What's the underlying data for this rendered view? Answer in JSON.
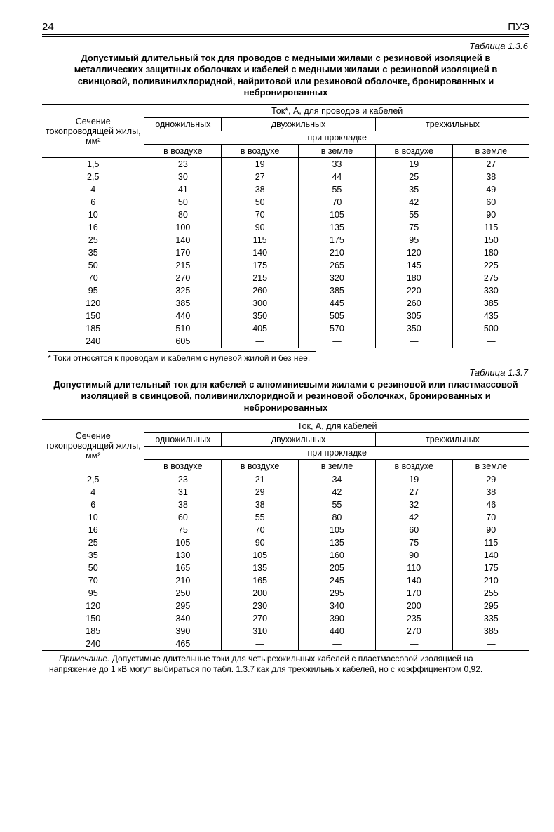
{
  "header": {
    "page_num": "24",
    "book": "ПУЭ"
  },
  "table1": {
    "label": "Таблица 1.3.6",
    "title": "Допустимый длительный ток для проводов с медными жилами с резиновой изоляцией в металлических защитных оболочках и кабелей с медными жилами с резиновой изоляцией в свинцовой, поливинилхлоридной, найритовой или резиновой оболочке, бронированных и небронированных",
    "row_header": "Сечение токопроводящей жилы, мм²",
    "super_header": "Ток*, А, для проводов и кабелей",
    "group1": "одножильных",
    "group2": "двухжильных",
    "group3": "трехжильных",
    "sub_header": "при прокладке",
    "col_air": "в воздухе",
    "col_ground": "в земле",
    "rows": [
      [
        "1,5",
        "23",
        "19",
        "33",
        "19",
        "27"
      ],
      [
        "2,5",
        "30",
        "27",
        "44",
        "25",
        "38"
      ],
      [
        "4",
        "41",
        "38",
        "55",
        "35",
        "49"
      ],
      [
        "6",
        "50",
        "50",
        "70",
        "42",
        "60"
      ],
      [
        "10",
        "80",
        "70",
        "105",
        "55",
        "90"
      ],
      [
        "16",
        "100",
        "90",
        "135",
        "75",
        "115"
      ],
      [
        "25",
        "140",
        "115",
        "175",
        "95",
        "150"
      ],
      [
        "35",
        "170",
        "140",
        "210",
        "120",
        "180"
      ],
      [
        "50",
        "215",
        "175",
        "265",
        "145",
        "225"
      ],
      [
        "70",
        "270",
        "215",
        "320",
        "180",
        "275"
      ],
      [
        "95",
        "325",
        "260",
        "385",
        "220",
        "330"
      ],
      [
        "120",
        "385",
        "300",
        "445",
        "260",
        "385"
      ],
      [
        "150",
        "440",
        "350",
        "505",
        "305",
        "435"
      ],
      [
        "185",
        "510",
        "405",
        "570",
        "350",
        "500"
      ],
      [
        "240",
        "605",
        "—",
        "—",
        "—",
        "—"
      ]
    ],
    "footnote": "* Токи относятся к проводам и кабелям с нулевой жилой и без нее."
  },
  "table2": {
    "label": "Таблица 1.3.7",
    "title": "Допустимый длительный ток для кабелей с алюминиевыми жилами с резиновой или пластмассовой изоляцией в свинцовой, поливинилхлоридной и резиновой оболочках, бронированных и небронированных",
    "row_header": "Сечение токопроводящей жилы, мм²",
    "super_header": "Ток, А, для кабелей",
    "group1": "одножильных",
    "group2": "двухжильных",
    "group3": "трехжильных",
    "sub_header": "при прокладке",
    "col_air": "в воздухе",
    "col_ground": "в земле",
    "rows": [
      [
        "2,5",
        "23",
        "21",
        "34",
        "19",
        "29"
      ],
      [
        "4",
        "31",
        "29",
        "42",
        "27",
        "38"
      ],
      [
        "6",
        "38",
        "38",
        "55",
        "32",
        "46"
      ],
      [
        "10",
        "60",
        "55",
        "80",
        "42",
        "70"
      ],
      [
        "16",
        "75",
        "70",
        "105",
        "60",
        "90"
      ],
      [
        "25",
        "105",
        "90",
        "135",
        "75",
        "115"
      ],
      [
        "35",
        "130",
        "105",
        "160",
        "90",
        "140"
      ],
      [
        "50",
        "165",
        "135",
        "205",
        "110",
        "175"
      ],
      [
        "70",
        "210",
        "165",
        "245",
        "140",
        "210"
      ],
      [
        "95",
        "250",
        "200",
        "295",
        "170",
        "255"
      ],
      [
        "120",
        "295",
        "230",
        "340",
        "200",
        "295"
      ],
      [
        "150",
        "340",
        "270",
        "390",
        "235",
        "335"
      ],
      [
        "185",
        "390",
        "310",
        "440",
        "270",
        "385"
      ],
      [
        "240",
        "465",
        "—",
        "—",
        "—",
        "—"
      ]
    ]
  },
  "note": {
    "lead": "Примечание.",
    "text": " Допустимые длительные токи для четырехжильных кабелей с пластмассовой изоляцией на напряжение до 1 кВ могут выбираться по табл. 1.3.7 как для трехжильных кабелей, но с коэффициентом 0,92."
  }
}
